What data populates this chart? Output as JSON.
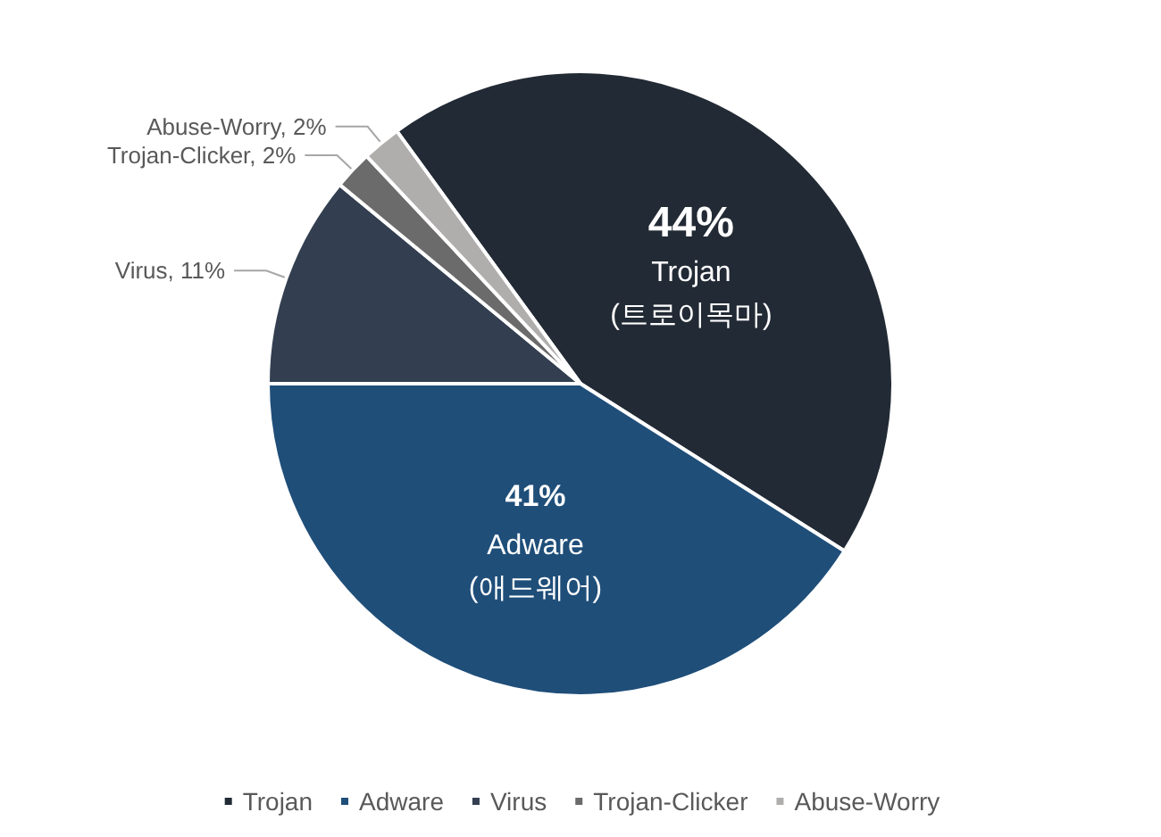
{
  "chart_data": {
    "type": "pie",
    "categories": [
      "Trojan",
      "Adware",
      "Virus",
      "Trojan-Clicker",
      "Abuse-Worry"
    ],
    "values": [
      44,
      41,
      11,
      2,
      2
    ],
    "colors": [
      "#222a35",
      "#1f4e79",
      "#333f50",
      "#6b6b6b",
      "#b0adad"
    ],
    "value_labels": [
      "44%\nTrojan\n(트로이목마)",
      "41%\nAdware\n(애드웨어)",
      "Virus, 11%",
      "Trojan-Clicker, 2%",
      "Abuse-Worry, 2%"
    ],
    "legend": "bottom"
  }
}
